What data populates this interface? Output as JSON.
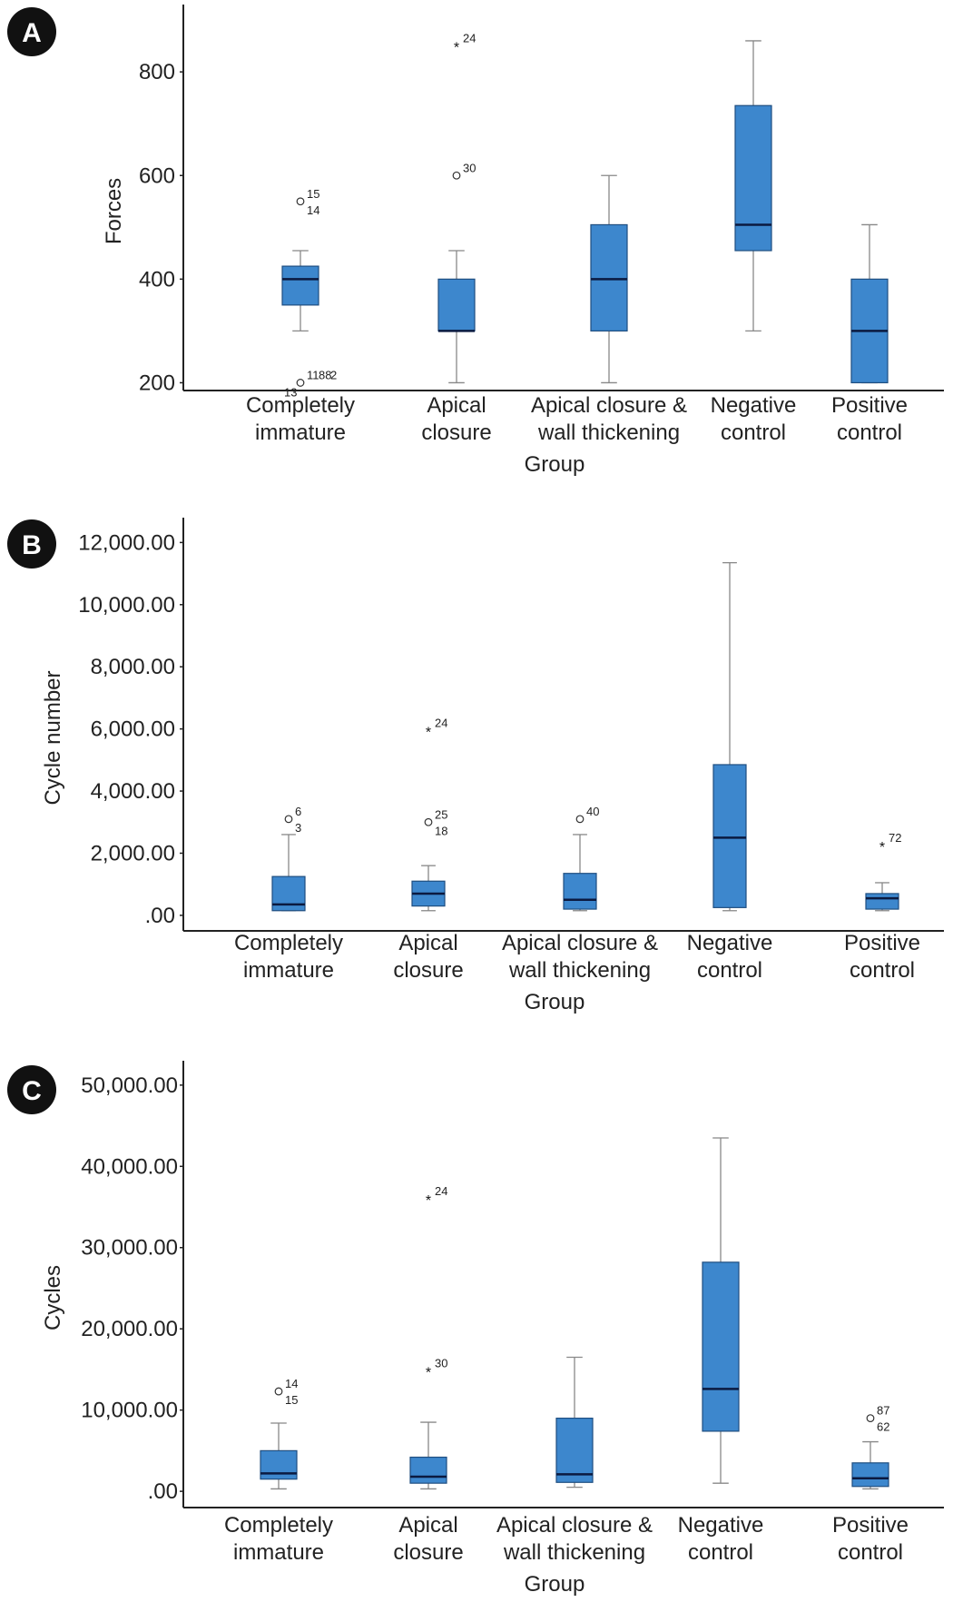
{
  "chart_data": [
    {
      "panel": "A",
      "type": "boxplot",
      "ylabel": "Forces",
      "xlabel": "Group",
      "ylim": [
        185,
        930
      ],
      "yticks": [
        200,
        400,
        600,
        800
      ],
      "ytick_labels": [
        "200",
        "400",
        "600",
        "800"
      ],
      "categories": [
        [
          "Completely",
          "immature"
        ],
        [
          "Apical",
          "closure"
        ],
        [
          "Apical closure &",
          "wall thickening"
        ],
        [
          "Negative",
          "control"
        ],
        [
          "Positive",
          "control"
        ]
      ],
      "boxes": [
        {
          "whisker_low": 300,
          "q1": 350,
          "median": 400,
          "q3": 425,
          "whisker_high": 455
        },
        {
          "whisker_low": 200,
          "q1": 300,
          "median": 300,
          "q3": 400,
          "whisker_high": 455
        },
        {
          "whisker_low": 200,
          "q1": 300,
          "median": 400,
          "q3": 505,
          "whisker_high": 600
        },
        {
          "whisker_low": 300,
          "q1": 455,
          "median": 505,
          "q3": 735,
          "whisker_high": 860
        },
        {
          "whisker_low": 200,
          "q1": 200,
          "median": 300,
          "q3": 400,
          "whisker_high": 505
        }
      ],
      "outliers": [
        {
          "group": 0,
          "value": 550,
          "marker": "o",
          "labels": [
            "15",
            "14"
          ]
        },
        {
          "group": 0,
          "value": 200,
          "marker": "o",
          "labels": [
            "11",
            "88",
            "2",
            "13"
          ]
        },
        {
          "group": 1,
          "value": 850,
          "marker": "*",
          "labels": [
            "24"
          ]
        },
        {
          "group": 1,
          "value": 600,
          "marker": "o",
          "labels": [
            "30"
          ]
        }
      ]
    },
    {
      "panel": "B",
      "type": "boxplot",
      "ylabel": "Cycle number",
      "xlabel": "Group",
      "ylim": [
        -500,
        12800
      ],
      "yticks": [
        0,
        2000,
        4000,
        6000,
        8000,
        10000,
        12000
      ],
      "ytick_labels": [
        ".00",
        "2,000.00",
        "4,000.00",
        "6,000.00",
        "8,000.00",
        "10,000.00",
        "12,000.00"
      ],
      "categories": [
        [
          "Completely",
          "immature"
        ],
        [
          "Apical",
          "closure"
        ],
        [
          "Apical closure &",
          "wall thickening"
        ],
        [
          "Negative",
          "control"
        ],
        [
          "Positive",
          "control"
        ]
      ],
      "boxes": [
        {
          "whisker_low": 150,
          "q1": 150,
          "median": 350,
          "q3": 1250,
          "whisker_high": 2600
        },
        {
          "whisker_low": 150,
          "q1": 300,
          "median": 700,
          "q3": 1100,
          "whisker_high": 1600
        },
        {
          "whisker_low": 150,
          "q1": 200,
          "median": 500,
          "q3": 1350,
          "whisker_high": 2600
        },
        {
          "whisker_low": 150,
          "q1": 250,
          "median": 2500,
          "q3": 4850,
          "whisker_high": 11350
        },
        {
          "whisker_low": 150,
          "q1": 200,
          "median": 550,
          "q3": 700,
          "whisker_high": 1050
        }
      ],
      "outliers": [
        {
          "group": 0,
          "value": 3100,
          "marker": "o",
          "labels": [
            "6",
            "3"
          ]
        },
        {
          "group": 1,
          "value": 5950,
          "marker": "*",
          "labels": [
            "24"
          ]
        },
        {
          "group": 1,
          "value": 3000,
          "marker": "o",
          "labels": [
            "25",
            "18"
          ]
        },
        {
          "group": 2,
          "value": 3100,
          "marker": "o",
          "labels": [
            "40"
          ]
        },
        {
          "group": 4,
          "value": 2250,
          "marker": "*",
          "labels": [
            "72"
          ]
        }
      ]
    },
    {
      "panel": "C",
      "type": "boxplot",
      "ylabel": "Cycles",
      "xlabel": "Group",
      "ylim": [
        -2000,
        53000
      ],
      "yticks": [
        0,
        10000,
        20000,
        30000,
        40000,
        50000
      ],
      "ytick_labels": [
        ".00",
        "10,000.00",
        "20,000.00",
        "30,000.00",
        "40,000.00",
        "50,000.00"
      ],
      "categories": [
        [
          "Completely",
          "immature"
        ],
        [
          "Apical",
          "closure"
        ],
        [
          "Apical closure &",
          "wall thickening"
        ],
        [
          "Negative",
          "control"
        ],
        [
          "Positive",
          "control"
        ]
      ],
      "boxes": [
        {
          "whisker_low": 300,
          "q1": 1500,
          "median": 2200,
          "q3": 5000,
          "whisker_high": 8400
        },
        {
          "whisker_low": 300,
          "q1": 1000,
          "median": 1800,
          "q3": 4200,
          "whisker_high": 8500
        },
        {
          "whisker_low": 500,
          "q1": 1100,
          "median": 2100,
          "q3": 9000,
          "whisker_high": 16500
        },
        {
          "whisker_low": 1000,
          "q1": 7400,
          "median": 12600,
          "q3": 28200,
          "whisker_high": 43500
        },
        {
          "whisker_low": 300,
          "q1": 600,
          "median": 1600,
          "q3": 3500,
          "whisker_high": 6100
        }
      ],
      "outliers": [
        {
          "group": 0,
          "value": 12300,
          "marker": "o",
          "labels": [
            "14",
            "15"
          ]
        },
        {
          "group": 1,
          "value": 36000,
          "marker": "*",
          "labels": [
            "24"
          ]
        },
        {
          "group": 1,
          "value": 14800,
          "marker": "*",
          "labels": [
            "30"
          ]
        },
        {
          "group": 4,
          "value": 9000,
          "marker": "o",
          "labels": [
            "87",
            "62"
          ]
        }
      ]
    }
  ],
  "colors": {
    "box_fill": "#3d87cd",
    "box_stroke": "#1f4e80",
    "median": "#0b1a40",
    "whisker": "#888888",
    "badge": "#111111"
  }
}
